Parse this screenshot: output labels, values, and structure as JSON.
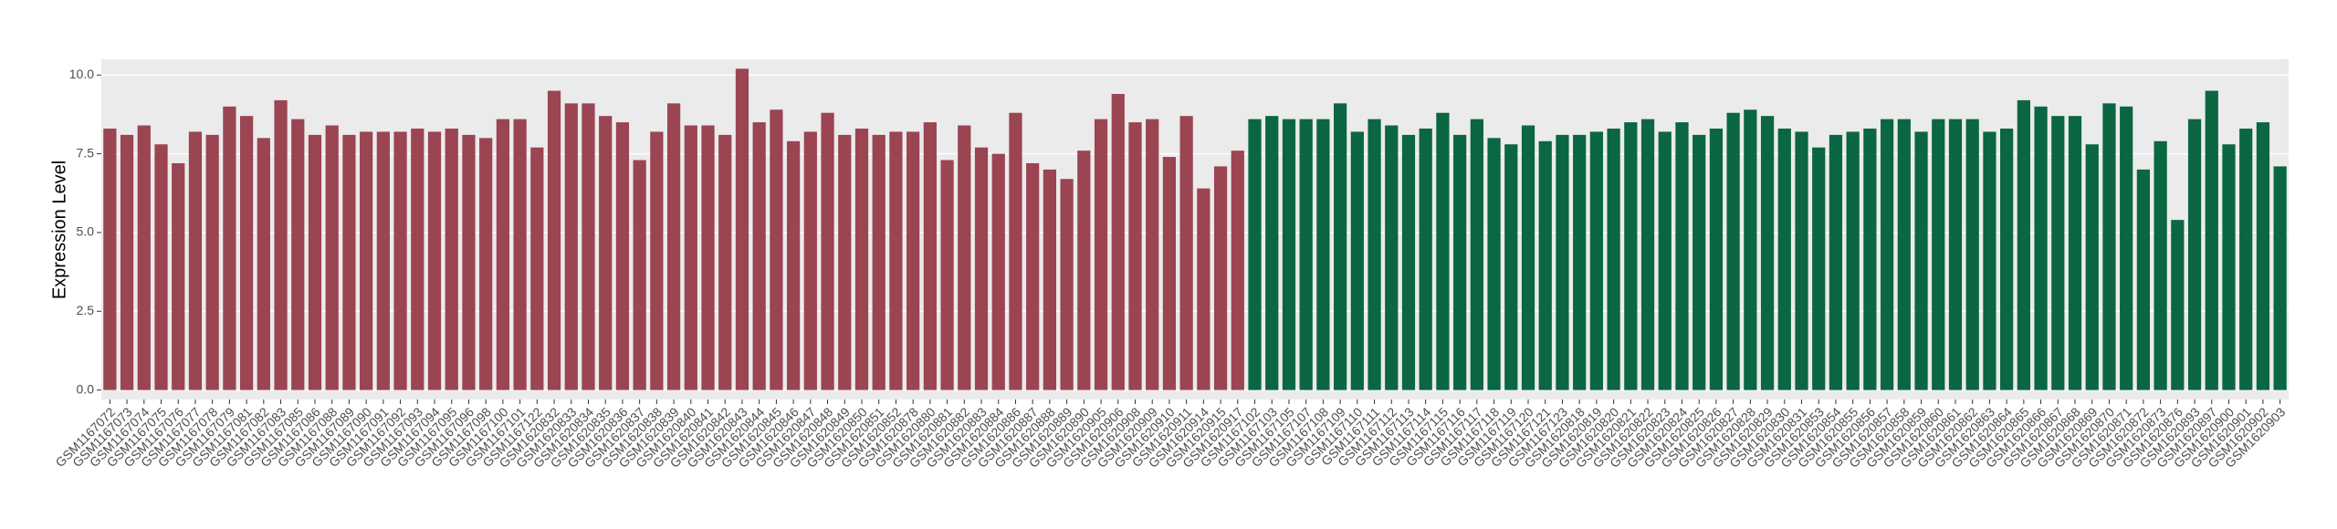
{
  "chart_data": {
    "type": "bar",
    "y_label": "Expression Level",
    "ylim": [
      -0.3,
      10.5
    ],
    "yticks": [
      {
        "value": 0,
        "label": "0.0"
      },
      {
        "value": 2.5,
        "label": "2.5"
      },
      {
        "value": 5,
        "label": "5.0"
      },
      {
        "value": 7.5,
        "label": "7.5"
      },
      {
        "value": 10,
        "label": "10.0"
      }
    ],
    "grid": true,
    "series": [
      {
        "color": "#9b4452",
        "categories": [
          "GSM1167072",
          "GSM1167073",
          "GSM1167074",
          "GSM1167075",
          "GSM1167076",
          "GSM1167077",
          "GSM1167078",
          "GSM1167079",
          "GSM1167081",
          "GSM1167082",
          "GSM1167083",
          "GSM1167085",
          "GSM1167086",
          "GSM1167088",
          "GSM1167089",
          "GSM1167090",
          "GSM1167091",
          "GSM1167092",
          "GSM1167093",
          "GSM1167094",
          "GSM1167095",
          "GSM1167096",
          "GSM1167098",
          "GSM1167100",
          "GSM1167101",
          "GSM1167122",
          "GSM1620832",
          "GSM1620833",
          "GSM1620834",
          "GSM1620835",
          "GSM1620836",
          "GSM1620837",
          "GSM1620838",
          "GSM1620839",
          "GSM1620840",
          "GSM1620841",
          "GSM1620842",
          "GSM1620843",
          "GSM1620844",
          "GSM1620845",
          "GSM1620846",
          "GSM1620847",
          "GSM1620848",
          "GSM1620849",
          "GSM1620850",
          "GSM1620851",
          "GSM1620852",
          "GSM1620878",
          "GSM1620880",
          "GSM1620881",
          "GSM1620882",
          "GSM1620883",
          "GSM1620884",
          "GSM1620886",
          "GSM1620887",
          "GSM1620888",
          "GSM1620889",
          "GSM1620890",
          "GSM1620905",
          "GSM1620906",
          "GSM1620908",
          "GSM1620909",
          "GSM1620910",
          "GSM1620911",
          "GSM1620914",
          "GSM1620915",
          "GSM1620917"
        ],
        "values": [
          8.3,
          8.1,
          8.4,
          7.8,
          7.2,
          8.2,
          8.1,
          9.0,
          8.7,
          8.0,
          9.2,
          8.6,
          8.1,
          8.4,
          8.1,
          8.2,
          8.2,
          8.2,
          8.3,
          8.2,
          8.3,
          8.1,
          8.0,
          8.6,
          8.6,
          7.7,
          9.5,
          9.1,
          9.1,
          8.7,
          8.5,
          7.3,
          8.2,
          9.1,
          8.4,
          8.4,
          8.1,
          10.2,
          8.5,
          8.9,
          7.9,
          8.2,
          8.8,
          8.1,
          8.3,
          8.1,
          8.2,
          8.2,
          8.5,
          7.3,
          8.4,
          7.7,
          7.5,
          8.8,
          7.2,
          7.0,
          6.7,
          7.6,
          8.6,
          9.4,
          8.5,
          8.6,
          7.4,
          8.7,
          6.4,
          7.1,
          7.6
        ]
      },
      {
        "color": "#0b6642",
        "categories": [
          "GSM1167102",
          "GSM1167103",
          "GSM1167105",
          "GSM1167107",
          "GSM1167108",
          "GSM1167109",
          "GSM1167110",
          "GSM1167111",
          "GSM1167112",
          "GSM1167113",
          "GSM1167114",
          "GSM1167115",
          "GSM1167116",
          "GSM1167117",
          "GSM1167118",
          "GSM1167119",
          "GSM1167120",
          "GSM1167121",
          "GSM1167123",
          "GSM1620818",
          "GSM1620819",
          "GSM1620820",
          "GSM1620821",
          "GSM1620822",
          "GSM1620823",
          "GSM1620824",
          "GSM1620825",
          "GSM1620826",
          "GSM1620827",
          "GSM1620828",
          "GSM1620829",
          "GSM1620830",
          "GSM1620831",
          "GSM1620853",
          "GSM1620854",
          "GSM1620855",
          "GSM1620856",
          "GSM1620857",
          "GSM1620858",
          "GSM1620859",
          "GSM1620860",
          "GSM1620861",
          "GSM1620862",
          "GSM1620863",
          "GSM1620864",
          "GSM1620865",
          "GSM1620866",
          "GSM1620867",
          "GSM1620868",
          "GSM1620869",
          "GSM1620870",
          "GSM1620871",
          "GSM1620872",
          "GSM1620873",
          "GSM1620876",
          "GSM1620893",
          "GSM1620897",
          "GSM1620900",
          "GSM1620901",
          "GSM1620902",
          "GSM1620903"
        ],
        "values": [
          8.6,
          8.7,
          8.6,
          8.6,
          8.6,
          9.1,
          8.2,
          8.6,
          8.4,
          8.1,
          8.3,
          8.8,
          8.1,
          8.6,
          8.0,
          7.8,
          8.4,
          7.9,
          8.1,
          8.1,
          8.2,
          8.3,
          8.5,
          8.6,
          8.2,
          8.5,
          8.1,
          8.3,
          8.8,
          8.9,
          8.7,
          8.3,
          8.2,
          7.7,
          8.1,
          8.2,
          8.3,
          8.6,
          8.6,
          8.2,
          8.6,
          8.6,
          8.6,
          8.2,
          8.3,
          9.2,
          9.0,
          8.7,
          8.7,
          7.8,
          9.1,
          9.0,
          7.0,
          7.9,
          5.4,
          8.6,
          9.5,
          7.8,
          8.3,
          8.5,
          7.1
        ]
      }
    ]
  }
}
